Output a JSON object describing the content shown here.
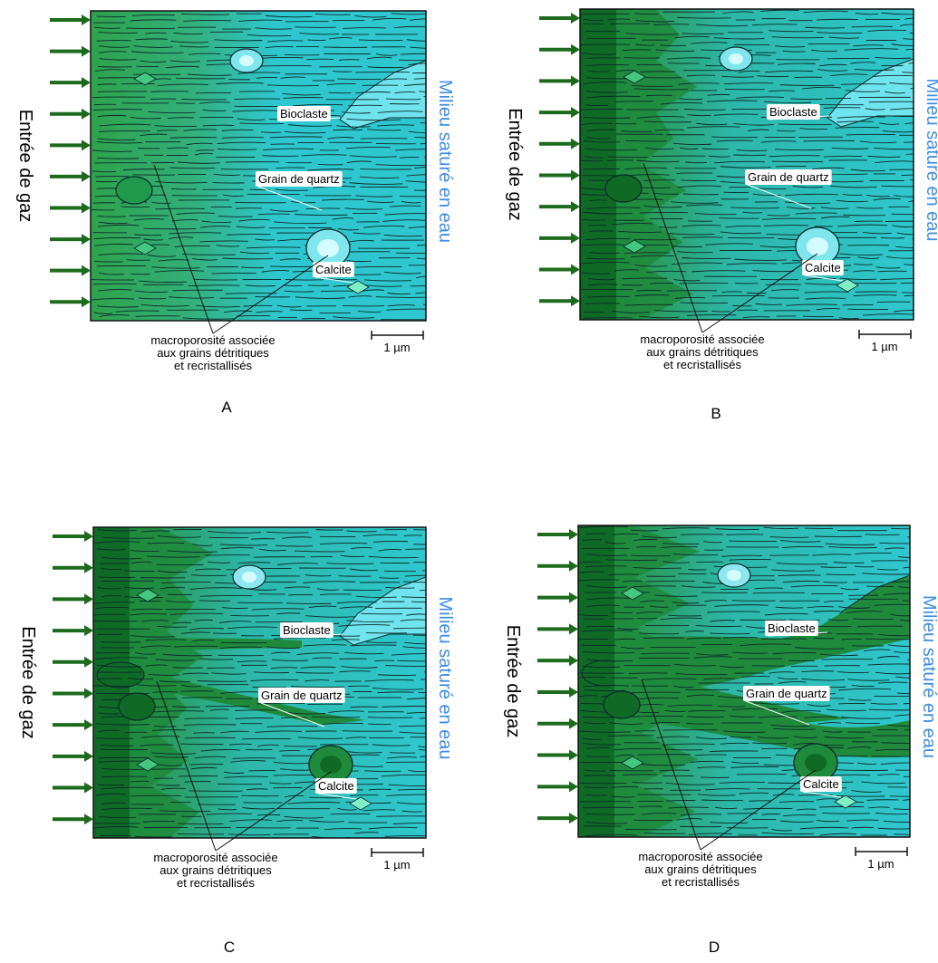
{
  "labels": {
    "gas_inlet": "Entrée de gaz",
    "water_medium": "Milieu saturé en eau",
    "bioclast": "Bioclaste",
    "quartz_grain": "Grain de quartz",
    "calcite": "Calcite",
    "macroporosity_line1": "macroporosité associée",
    "macroporosity_line2": "aux grains détritiques",
    "macroporosity_line3": "et recristallisés",
    "scale": "1 µm"
  },
  "panels": [
    {
      "letter": "A",
      "invasion_stage": 0
    },
    {
      "letter": "B",
      "invasion_stage": 1
    },
    {
      "letter": "C",
      "invasion_stage": 2
    },
    {
      "letter": "D",
      "invasion_stage": 3
    }
  ],
  "colors": {
    "water_fill": "#2fc7cf",
    "water_light": "#7fe6ee",
    "bioclast_fill": "#6fe4ef",
    "gas_fill": "#1f8a3c",
    "gas_dark": "#0f6a25",
    "gas_mid": "#2ea24c",
    "fiber": "#0c2a2a",
    "arrow": "#1c6a1c",
    "water_text": "#3c8ee8"
  },
  "icons": {
    "inlet_arrow": "right-arrow-icon"
  }
}
